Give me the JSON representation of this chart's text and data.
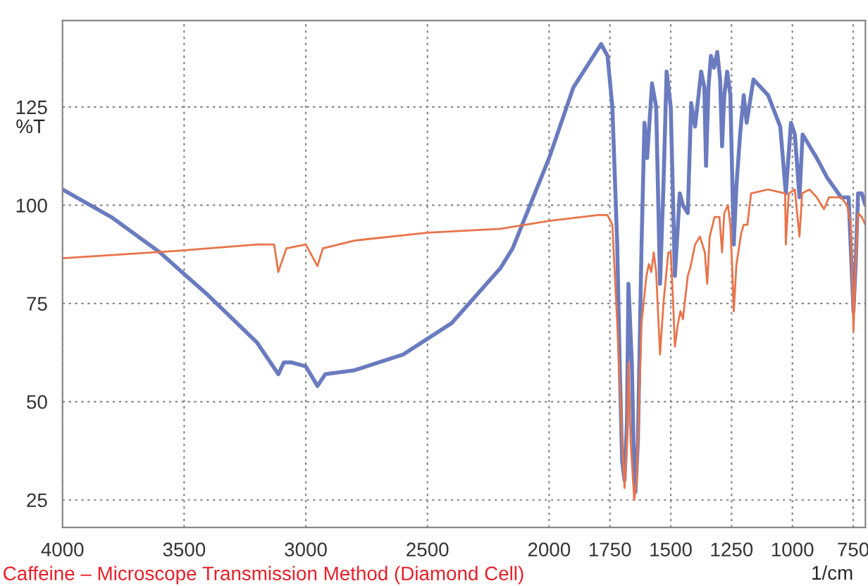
{
  "chart_data": {
    "type": "line",
    "ylabel": "%T",
    "xlabel": "1/cm",
    "annotations": [
      "Caffeine – Microscope Transmission Method (Diamond Cell)"
    ],
    "xlim": [
      4000,
      700
    ],
    "ylim": [
      18,
      147
    ],
    "xticks": [
      4000,
      3500,
      3000,
      2500,
      2000,
      1750,
      1500,
      1250,
      1000,
      750
    ],
    "yticks": [
      25,
      50,
      75,
      100,
      125
    ],
    "grid": true,
    "marker": "none",
    "line_style": "solid",
    "series": [
      {
        "color": "#6a7bbf",
        "x": [
          4000,
          3800,
          3600,
          3400,
          3200,
          3113,
          3090,
          3060,
          3000,
          2952,
          2920,
          2800,
          2600,
          2400,
          2200,
          2150,
          2000,
          1900,
          1786,
          1760,
          1740,
          1720,
          1710,
          1700,
          1690,
          1680,
          1674,
          1660,
          1650,
          1645,
          1635,
          1620,
          1608,
          1597,
          1577,
          1560,
          1544,
          1530,
          1517,
          1500,
          1483,
          1463,
          1450,
          1430,
          1416,
          1400,
          1375,
          1362,
          1355,
          1345,
          1335,
          1322,
          1309,
          1297,
          1289,
          1280,
          1268,
          1255,
          1241,
          1230,
          1215,
          1200,
          1188,
          1160,
          1100,
          1050,
          1027,
          1006,
          990,
          971,
          958,
          900,
          857,
          800,
          769,
          749,
          740,
          730,
          715,
          700
        ],
        "values": [
          104,
          97,
          88,
          77,
          65,
          57,
          60,
          60,
          59,
          54,
          57,
          58,
          62,
          70,
          84,
          89,
          112,
          130,
          141,
          138,
          125,
          90,
          60,
          35,
          30,
          45,
          80,
          60,
          30,
          27,
          40,
          90,
          121,
          112,
          131,
          125,
          80,
          105,
          134,
          125,
          82,
          103,
          100,
          98,
          126,
          120,
          134,
          130,
          110,
          130,
          138,
          135,
          139,
          132,
          115,
          128,
          134,
          128,
          90,
          105,
          118,
          128,
          121,
          132,
          128,
          120,
          103,
          121,
          118,
          102,
          118,
          112,
          107,
          102,
          102,
          73,
          85,
          103,
          103,
          100
        ]
      },
      {
        "color": "#e8744a",
        "x": [
          4000,
          3500,
          3200,
          3130,
          3113,
          3080,
          3000,
          2952,
          2930,
          2800,
          2500,
          2200,
          2000,
          1800,
          1760,
          1740,
          1720,
          1700,
          1690,
          1680,
          1674,
          1665,
          1650,
          1640,
          1620,
          1600,
          1590,
          1580,
          1570,
          1560,
          1544,
          1530,
          1510,
          1500,
          1490,
          1483,
          1470,
          1460,
          1450,
          1430,
          1420,
          1400,
          1380,
          1360,
          1350,
          1340,
          1320,
          1300,
          1289,
          1280,
          1265,
          1255,
          1245,
          1241,
          1230,
          1210,
          1200,
          1185,
          1170,
          1100,
          1030,
          1027,
          1015,
          990,
          971,
          960,
          930,
          900,
          870,
          850,
          800,
          775,
          760,
          749,
          740,
          730,
          715,
          700
        ],
        "values": [
          86.5,
          88.5,
          90,
          90,
          83,
          89,
          90,
          84.5,
          89,
          91,
          93,
          94,
          96,
          97.5,
          97.5,
          95,
          70,
          40,
          28,
          40,
          60,
          40,
          25,
          30,
          70,
          82,
          85,
          83,
          88,
          83,
          62,
          75,
          88,
          88,
          75,
          64,
          70,
          73,
          71,
          82,
          84,
          90,
          92,
          88,
          80,
          92,
          97,
          97,
          88,
          98,
          100,
          95,
          80,
          73,
          85,
          93,
          95,
          95,
          103,
          104,
          103,
          90,
          103,
          104,
          92,
          103,
          104,
          102,
          99,
          102,
          102,
          100,
          95,
          68,
          85,
          98,
          97,
          95
        ]
      }
    ]
  }
}
